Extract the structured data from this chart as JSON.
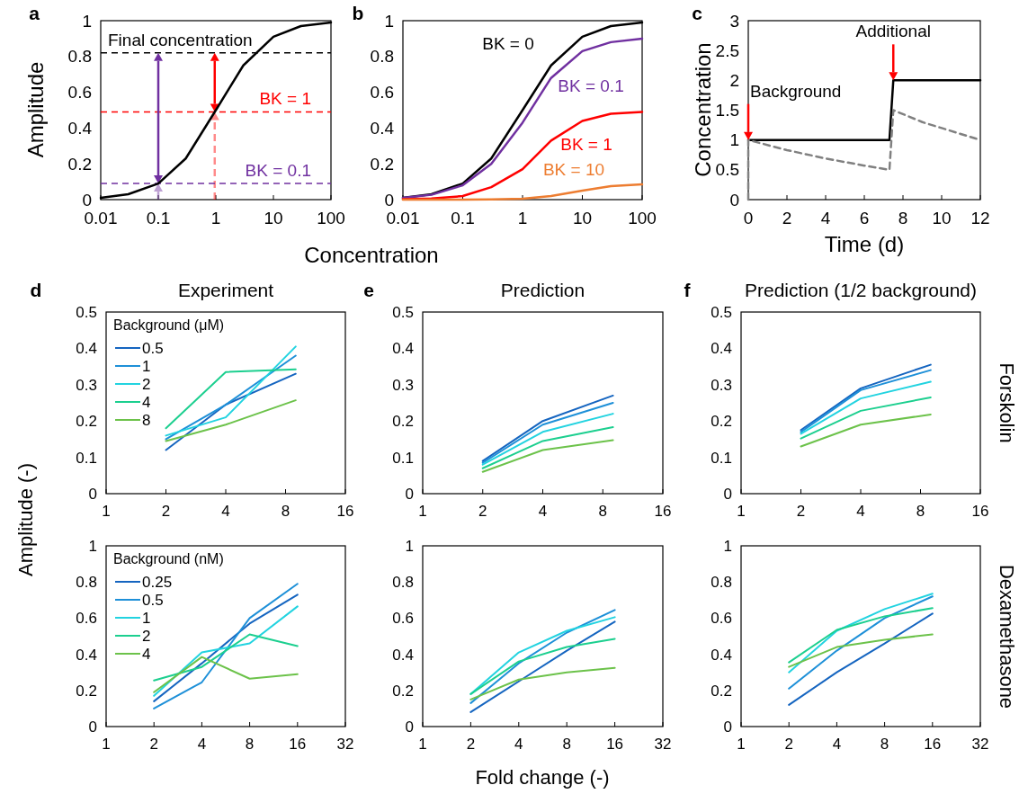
{
  "chart_data": [
    {
      "type": "line",
      "ylabel": "Amplitude",
      "xlabel": "Concentration",
      "annotations": [
        "a",
        "BK = 1",
        "BK = 0.1"
      ],
      "log": "x",
      "xlim": [
        0.01,
        100
      ],
      "xticks": [
        0.01,
        0.1,
        1,
        10,
        100
      ],
      "ylim": [
        0,
        1
      ],
      "yticks": [
        0,
        0.2,
        0.4,
        0.6,
        0.8,
        1
      ],
      "legend": false,
      "grid": false,
      "x": [
        0.01,
        0.03,
        0.1,
        0.3,
        1,
        3,
        10,
        30,
        100
      ],
      "series": [
        {
          "color": "#000000",
          "values": [
            0.01,
            0.03,
            0.09,
            0.23,
            0.5,
            0.75,
            0.91,
            0.97,
            0.99
          ]
        }
      ],
      "ref_lines": [
        {
          "axis": "y",
          "value": 0.82,
          "label": "Final concentration",
          "color": "#000000",
          "line_style": "dashed"
        },
        {
          "axis": "y",
          "value": 0.49,
          "color": "#ff0000",
          "line_style": "dashed"
        },
        {
          "axis": "y",
          "value": 0.09,
          "color": "#7030a0",
          "line_style": "dashed"
        }
      ]
    },
    {
      "type": "line",
      "annotations": [
        "b"
      ],
      "log": "x",
      "xlim": [
        0.01,
        100
      ],
      "xticks": [
        0.01,
        0.1,
        1,
        10,
        100
      ],
      "ylim": [
        0,
        1
      ],
      "yticks": [
        0,
        0.2,
        0.4,
        0.6,
        0.8,
        1
      ],
      "legend": false,
      "grid": false,
      "x": [
        0.01,
        0.03,
        0.1,
        0.3,
        1,
        3,
        10,
        30,
        100
      ],
      "series": [
        {
          "name": "BK = 0",
          "color": "#000000",
          "values": [
            0.01,
            0.03,
            0.09,
            0.23,
            0.5,
            0.75,
            0.91,
            0.97,
            0.99
          ]
        },
        {
          "name": "BK = 0.1",
          "color": "#7030a0",
          "values": [
            0.01,
            0.027,
            0.08,
            0.2,
            0.43,
            0.68,
            0.83,
            0.88,
            0.9
          ]
        },
        {
          "name": "BK = 1",
          "color": "#ff0000",
          "values": [
            0.002,
            0.006,
            0.02,
            0.07,
            0.17,
            0.33,
            0.44,
            0.48,
            0.49
          ]
        },
        {
          "name": "BK = 10",
          "color": "#ed7d31",
          "values": [
            0,
            0,
            0,
            0.001,
            0.005,
            0.02,
            0.05,
            0.075,
            0.085
          ]
        }
      ]
    },
    {
      "type": "line",
      "ylabel": "Concentration",
      "xlabel": "Time (d)",
      "annotations": [
        "c",
        {
          "text": "Background",
          "x": 0,
          "y": 1
        },
        {
          "text": "Additional",
          "x": 7.5,
          "y": 2
        }
      ],
      "xlim": [
        0,
        12
      ],
      "xticks": [
        0,
        2,
        4,
        6,
        8,
        10,
        12
      ],
      "ylim": [
        0,
        3
      ],
      "yticks": [
        0,
        0.5,
        1,
        1.5,
        2,
        2.5,
        3
      ],
      "legend": false,
      "grid": false,
      "series": [
        {
          "color": "#000000",
          "x": [
            0,
            7.3,
            7.5,
            12
          ],
          "values": [
            1,
            1,
            2,
            2
          ]
        },
        {
          "color": "#808080",
          "line_style": "dashed",
          "x": [
            0,
            0,
            2,
            4,
            6,
            7.3,
            7.5,
            9,
            10,
            12
          ],
          "values": [
            0,
            1,
            0.83,
            0.69,
            0.57,
            0.5,
            1.5,
            1.3,
            1.2,
            1
          ]
        }
      ]
    },
    {
      "type": "line",
      "title": "Experiment",
      "ylabel": "Amplitude (-)",
      "annotations": [
        "d"
      ],
      "legend": "top left",
      "legend_title": "Background (μM)",
      "log": "x",
      "xlim": [
        1,
        16
      ],
      "xticks": [
        1,
        2,
        4,
        8,
        16
      ],
      "ylim": [
        0,
        0.5
      ],
      "yticks": [
        0,
        0.1,
        0.2,
        0.3,
        0.4,
        0.5
      ],
      "grid": false,
      "x": [
        2,
        4,
        9
      ],
      "series": [
        {
          "name": "0.5",
          "color": "#1565c0",
          "values": [
            0.12,
            0.245,
            0.33
          ]
        },
        {
          "name": "1",
          "color": "#1e90d8",
          "values": [
            0.15,
            0.245,
            0.38
          ]
        },
        {
          "name": "2",
          "color": "#22d3e0",
          "values": [
            0.16,
            0.21,
            0.405
          ]
        },
        {
          "name": "4",
          "color": "#1ccf8f",
          "values": [
            0.18,
            0.335,
            0.342
          ]
        },
        {
          "name": "8",
          "color": "#6cc24a",
          "values": [
            0.145,
            0.19,
            0.257
          ]
        }
      ]
    },
    {
      "type": "line",
      "title": "Prediction",
      "annotations": [
        "e"
      ],
      "log": "x",
      "xlim": [
        1,
        16
      ],
      "xticks": [
        1,
        2,
        4,
        8,
        16
      ],
      "ylim": [
        0,
        0.5
      ],
      "yticks": [
        0,
        0.1,
        0.2,
        0.3,
        0.4,
        0.5
      ],
      "legend": false,
      "grid": false,
      "x": [
        2,
        4,
        9
      ],
      "series": [
        {
          "color": "#1565c0",
          "values": [
            0.09,
            0.2,
            0.27
          ]
        },
        {
          "color": "#1e90d8",
          "values": [
            0.085,
            0.19,
            0.25
          ]
        },
        {
          "color": "#22d3e0",
          "values": [
            0.08,
            0.17,
            0.22
          ]
        },
        {
          "color": "#1ccf8f",
          "values": [
            0.07,
            0.145,
            0.183
          ]
        },
        {
          "color": "#6cc24a",
          "values": [
            0.06,
            0.12,
            0.147
          ]
        }
      ]
    },
    {
      "type": "line",
      "title": "Prediction (1/2 background)",
      "annotations": [
        "f",
        "Forskolin"
      ],
      "log": "x",
      "xlim": [
        1,
        16
      ],
      "xticks": [
        1,
        2,
        4,
        8,
        16
      ],
      "ylim": [
        0,
        0.5
      ],
      "yticks": [
        0,
        0.1,
        0.2,
        0.3,
        0.4,
        0.5
      ],
      "legend": false,
      "grid": false,
      "x": [
        2,
        4,
        9
      ],
      "series": [
        {
          "color": "#1565c0",
          "values": [
            0.175,
            0.29,
            0.355
          ]
        },
        {
          "color": "#1e90d8",
          "values": [
            0.17,
            0.285,
            0.34
          ]
        },
        {
          "color": "#22d3e0",
          "values": [
            0.165,
            0.262,
            0.308
          ]
        },
        {
          "color": "#1ccf8f",
          "values": [
            0.152,
            0.228,
            0.265
          ]
        },
        {
          "color": "#6cc24a",
          "values": [
            0.13,
            0.19,
            0.218
          ]
        }
      ]
    },
    {
      "type": "line",
      "legend": "top left",
      "legend_title": "Background (nM)",
      "log": "x",
      "xlim": [
        1,
        32
      ],
      "xticks": [
        1,
        2,
        4,
        8,
        16,
        32
      ],
      "ylim": [
        0,
        1
      ],
      "yticks": [
        0,
        0.2,
        0.4,
        0.6,
        0.8,
        1
      ],
      "grid": false,
      "x": [
        2,
        4,
        8,
        16
      ],
      "series": [
        {
          "name": "0.25",
          "color": "#1565c0",
          "values": [
            0.14,
            0.35,
            0.57,
            0.73
          ]
        },
        {
          "name": "0.5",
          "color": "#1e90d8",
          "values": [
            0.1,
            0.245,
            0.6,
            0.79
          ]
        },
        {
          "name": "1",
          "color": "#22d3e0",
          "values": [
            0.17,
            0.41,
            0.46,
            0.665
          ]
        },
        {
          "name": "2",
          "color": "#1ccf8f",
          "values": [
            0.255,
            0.33,
            0.51,
            0.445
          ]
        },
        {
          "name": "4",
          "color": "#6cc24a",
          "values": [
            0.19,
            0.385,
            0.265,
            0.29
          ]
        }
      ]
    },
    {
      "type": "line",
      "xlabel": "Fold change (-)",
      "log": "x",
      "xlim": [
        1,
        32
      ],
      "xticks": [
        1,
        2,
        4,
        8,
        16,
        32
      ],
      "ylim": [
        0,
        1
      ],
      "yticks": [
        0,
        0.2,
        0.4,
        0.6,
        0.8,
        1
      ],
      "legend": false,
      "grid": false,
      "x": [
        2,
        4,
        8,
        16
      ],
      "series": [
        {
          "color": "#1565c0",
          "values": [
            0.08,
            0.25,
            0.42,
            0.58
          ]
        },
        {
          "color": "#1e90d8",
          "values": [
            0.13,
            0.35,
            0.52,
            0.645
          ]
        },
        {
          "color": "#22d3e0",
          "values": [
            0.18,
            0.41,
            0.53,
            0.605
          ]
        },
        {
          "color": "#1ccf8f",
          "values": [
            0.18,
            0.36,
            0.44,
            0.485
          ]
        },
        {
          "color": "#6cc24a",
          "values": [
            0.15,
            0.26,
            0.3,
            0.325
          ]
        }
      ]
    },
    {
      "type": "line",
      "annotations": [
        "Dexamethasone"
      ],
      "log": "x",
      "xlim": [
        1,
        32
      ],
      "xticks": [
        1,
        2,
        4,
        8,
        16,
        32
      ],
      "ylim": [
        0,
        1
      ],
      "yticks": [
        0,
        0.2,
        0.4,
        0.6,
        0.8,
        1
      ],
      "legend": false,
      "grid": false,
      "x": [
        2,
        4,
        8,
        16
      ],
      "series": [
        {
          "color": "#1565c0",
          "values": [
            0.12,
            0.3,
            0.46,
            0.625
          ]
        },
        {
          "color": "#1e90d8",
          "values": [
            0.21,
            0.42,
            0.6,
            0.72
          ]
        },
        {
          "color": "#22d3e0",
          "values": [
            0.3,
            0.53,
            0.65,
            0.735
          ]
        },
        {
          "color": "#1ccf8f",
          "values": [
            0.355,
            0.535,
            0.61,
            0.655
          ]
        },
        {
          "color": "#6cc24a",
          "values": [
            0.33,
            0.44,
            0.48,
            0.51
          ]
        }
      ]
    }
  ]
}
